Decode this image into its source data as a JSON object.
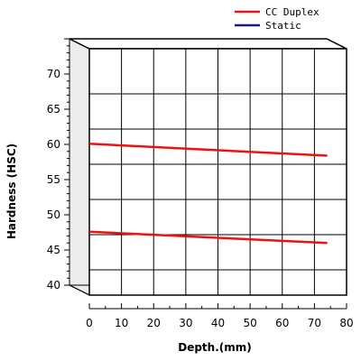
{
  "chart_data": {
    "type": "line",
    "title": "",
    "xlabel": "Depth.(mm)",
    "ylabel": "Hardness (HSC)",
    "xlim": [
      0,
      80
    ],
    "ylim": [
      40,
      75
    ],
    "x_ticks": [
      "0",
      "10",
      "20",
      "30",
      "40",
      "50",
      "60",
      "70",
      "80"
    ],
    "y_ticks": [
      "40",
      "45",
      "50",
      "55",
      "60",
      "65",
      "70"
    ],
    "grid": true,
    "three_d": true,
    "legend_position": "top-right",
    "legend": [
      {
        "label": "CC Duplex",
        "color": "#ee1111"
      },
      {
        "label": "Static",
        "color": "#1a1a7a"
      }
    ],
    "series": [
      {
        "legend_index": 0,
        "color": "#ee1111",
        "x": [
          0,
          74
        ],
        "y": [
          61.5,
          59.8
        ]
      },
      {
        "legend_index": 0,
        "color": "#ee1111",
        "x": [
          0,
          74
        ],
        "y": [
          49,
          47.4
        ]
      }
    ]
  }
}
